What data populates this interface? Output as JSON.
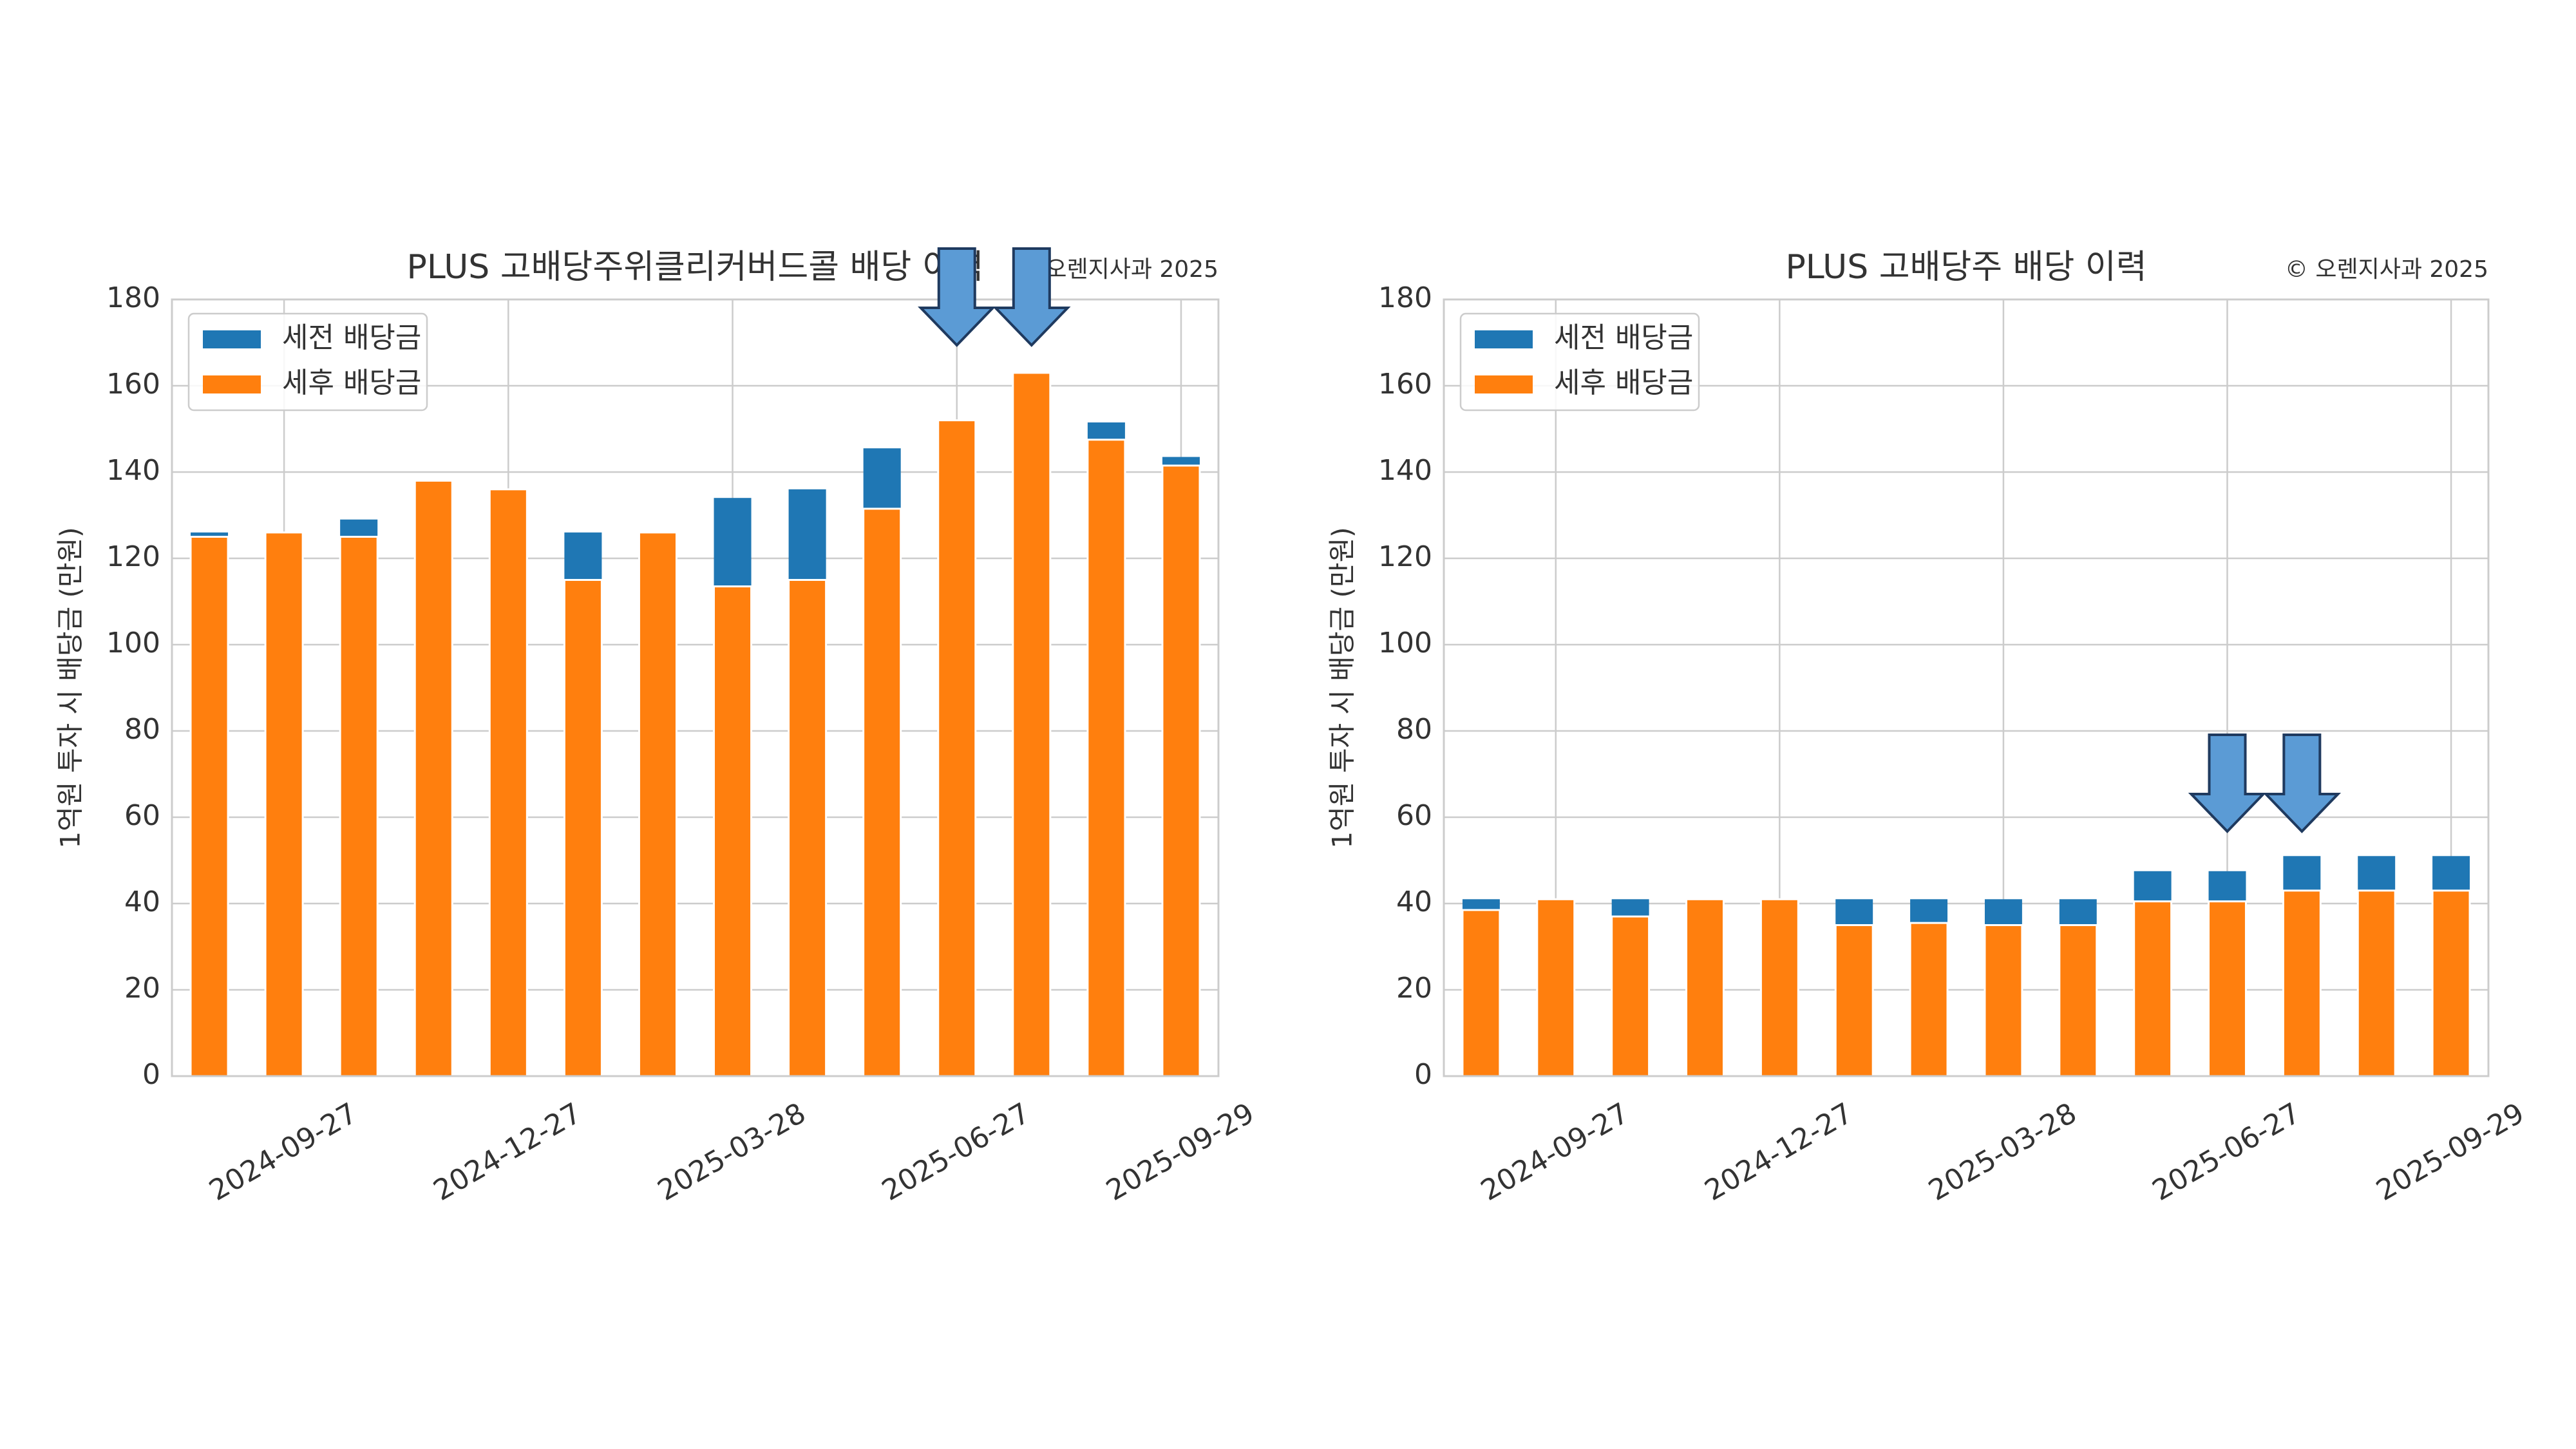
{
  "chart_data": [
    {
      "type": "bar",
      "title": "PLUS 고배당주위클리커버드콜 배당 이력",
      "annotation": "© 오렌지사과 2025",
      "y_label": "1억원 투자 시 배당금 (만원)",
      "categories": [
        null,
        "2024-09-27",
        null,
        null,
        "2024-12-27",
        null,
        null,
        "2025-03-28",
        null,
        null,
        "2025-06-27",
        null,
        null,
        "2025-09-29"
      ],
      "series": [
        {
          "name": "세전 배당금",
          "color": "#1f77b4",
          "values": [
            126,
            126,
            129,
            138,
            136,
            126,
            126,
            134,
            136,
            145.5,
            152,
            163,
            151.5,
            143.5
          ]
        },
        {
          "name": "세후 배당금",
          "color": "#ff7f0e",
          "values": [
            125,
            126,
            125,
            138,
            136,
            115,
            126,
            113.5,
            115,
            131.5,
            152,
            163,
            147.5,
            141.5
          ]
        }
      ],
      "ylim": [
        0,
        180
      ],
      "yticks": [
        0,
        20,
        40,
        60,
        80,
        100,
        120,
        140,
        160,
        180
      ],
      "grid": true,
      "legend": "upper left"
    },
    {
      "type": "bar",
      "title": "PLUS 고배당주 배당 이력",
      "annotation": "© 오렌지사과 2025",
      "y_label": "1억원 투자 시 배당금 (만원)",
      "categories": [
        null,
        "2024-09-27",
        null,
        null,
        "2024-12-27",
        null,
        null,
        "2025-03-28",
        null,
        null,
        "2025-06-27",
        null,
        null,
        "2025-09-29"
      ],
      "series": [
        {
          "name": "세전 배당금",
          "color": "#1f77b4",
          "values": [
            41,
            41,
            41,
            41,
            41,
            41,
            41,
            41,
            41,
            47.5,
            47.5,
            51,
            51,
            51
          ]
        },
        {
          "name": "세후 배당금",
          "color": "#ff7f0e",
          "values": [
            38.5,
            41,
            37,
            41,
            41,
            35,
            35.5,
            35,
            35,
            40.5,
            40.5,
            43,
            43,
            43
          ]
        }
      ],
      "ylim": [
        0,
        180
      ],
      "yticks": [
        0,
        20,
        40,
        60,
        80,
        100,
        120,
        140,
        160,
        180
      ],
      "grid": true,
      "legend": "upper left"
    }
  ]
}
